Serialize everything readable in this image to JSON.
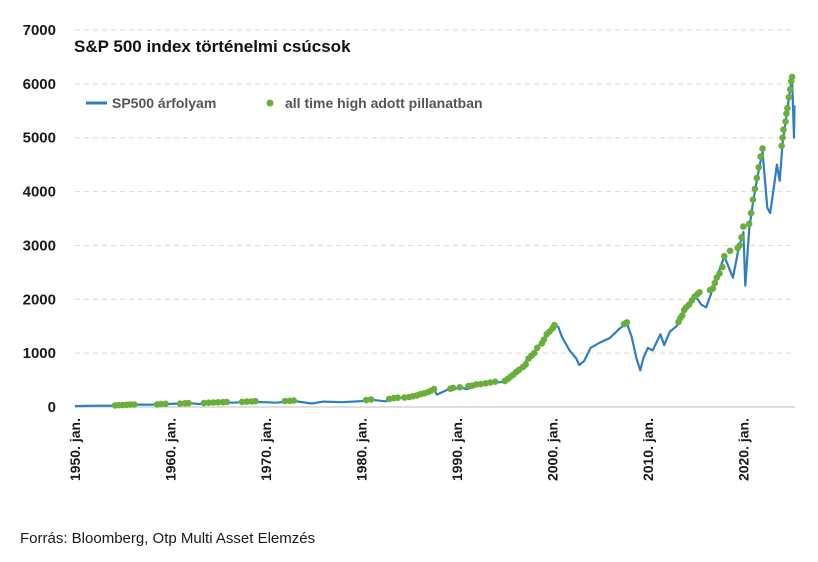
{
  "chart_data": {
    "type": "line",
    "title": "S&P 500 index történelmi csúcsok",
    "ylim": [
      0,
      7000
    ],
    "yticks": [
      "0",
      "1000",
      "2000",
      "3000",
      "4000",
      "5000",
      "6000",
      "7000"
    ],
    "xticks": [
      "1950. jan.",
      "1960. jan.",
      "1970. jan.",
      "1980. jan.",
      "1990. jan.",
      "2000. jan.",
      "2010. jan.",
      "2020. jan."
    ],
    "grid": "horizontal dashed",
    "legend_position": "top-left",
    "series": [
      {
        "name": "SP500 árfolyam",
        "style": "line",
        "color": "#2f7dc4",
        "points": [
          [
            1950.0,
            17
          ],
          [
            1952.0,
            24
          ],
          [
            1954.0,
            26
          ],
          [
            1955.0,
            36
          ],
          [
            1956.0,
            45
          ],
          [
            1957.0,
            44
          ],
          [
            1958.0,
            42
          ],
          [
            1960.0,
            58
          ],
          [
            1962.0,
            70
          ],
          [
            1963.0,
            55
          ],
          [
            1965.0,
            85
          ],
          [
            1966.5,
            80
          ],
          [
            1968.0,
            95
          ],
          [
            1970.0,
            90
          ],
          [
            1971.0,
            80
          ],
          [
            1973.0,
            110
          ],
          [
            1974.8,
            65
          ],
          [
            1976.0,
            100
          ],
          [
            1978.0,
            90
          ],
          [
            1980.0,
            110
          ],
          [
            1981.0,
            135
          ],
          [
            1982.5,
            105
          ],
          [
            1984.0,
            165
          ],
          [
            1986.0,
            240
          ],
          [
            1987.6,
            330
          ],
          [
            1987.9,
            230
          ],
          [
            1989.0,
            320
          ],
          [
            1990.5,
            360
          ],
          [
            1991.0,
            330
          ],
          [
            1993.0,
            440
          ],
          [
            1994.5,
            460
          ],
          [
            1995.0,
            470
          ],
          [
            1996.0,
            620
          ],
          [
            1997.0,
            800
          ],
          [
            1998.0,
            1000
          ],
          [
            1999.0,
            1250
          ],
          [
            2000.2,
            1500
          ],
          [
            2000.6,
            1490
          ],
          [
            2001.0,
            1300
          ],
          [
            2001.8,
            1050
          ],
          [
            2002.5,
            900
          ],
          [
            2002.8,
            780
          ],
          [
            2003.3,
            850
          ],
          [
            2004.0,
            1100
          ],
          [
            2005.0,
            1200
          ],
          [
            2006.0,
            1280
          ],
          [
            2007.0,
            1450
          ],
          [
            2007.8,
            1560
          ],
          [
            2008.3,
            1300
          ],
          [
            2008.8,
            900
          ],
          [
            2009.2,
            680
          ],
          [
            2009.5,
            900
          ],
          [
            2010.0,
            1100
          ],
          [
            2010.5,
            1050
          ],
          [
            2011.3,
            1350
          ],
          [
            2011.7,
            1150
          ],
          [
            2012.3,
            1400
          ],
          [
            2013.0,
            1500
          ],
          [
            2014.0,
            1850
          ],
          [
            2015.0,
            2050
          ],
          [
            2015.6,
            1900
          ],
          [
            2016.1,
            1850
          ],
          [
            2017.0,
            2300
          ],
          [
            2018.0,
            2800
          ],
          [
            2018.9,
            2400
          ],
          [
            2019.5,
            2950
          ],
          [
            2020.0,
            3250
          ],
          [
            2020.2,
            2250
          ],
          [
            2020.6,
            3300
          ],
          [
            2021.0,
            3800
          ],
          [
            2021.5,
            4300
          ],
          [
            2022.0,
            4750
          ],
          [
            2022.5,
            3700
          ],
          [
            2022.8,
            3600
          ],
          [
            2023.2,
            4100
          ],
          [
            2023.5,
            4500
          ],
          [
            2023.8,
            4200
          ],
          [
            2024.1,
            4900
          ],
          [
            2024.5,
            5400
          ],
          [
            2024.9,
            5900
          ],
          [
            2025.1,
            6100
          ],
          [
            2025.3,
            5000
          ],
          [
            2025.35,
            5600
          ]
        ]
      },
      {
        "name": "all time high adott pillanatban",
        "style": "markers",
        "color": "#6aaf3a",
        "points": [
          [
            1954.2,
            30
          ],
          [
            1954.6,
            33
          ],
          [
            1955.0,
            36
          ],
          [
            1955.4,
            40
          ],
          [
            1955.8,
            44
          ],
          [
            1956.2,
            46
          ],
          [
            1958.6,
            48
          ],
          [
            1959.0,
            55
          ],
          [
            1959.5,
            59
          ],
          [
            1961.0,
            62
          ],
          [
            1961.5,
            68
          ],
          [
            1961.9,
            71
          ],
          [
            1963.5,
            72
          ],
          [
            1964.0,
            80
          ],
          [
            1964.5,
            84
          ],
          [
            1965.0,
            87
          ],
          [
            1965.5,
            90
          ],
          [
            1965.9,
            93
          ],
          [
            1967.5,
            95
          ],
          [
            1968.0,
            100
          ],
          [
            1968.5,
            104
          ],
          [
            1968.9,
            107
          ],
          [
            1972.0,
            112
          ],
          [
            1972.5,
            116
          ],
          [
            1972.9,
            119
          ],
          [
            1980.5,
            128
          ],
          [
            1981.0,
            140
          ],
          [
            1982.9,
            150
          ],
          [
            1983.4,
            165
          ],
          [
            1983.8,
            172
          ],
          [
            1984.5,
            175
          ],
          [
            1985.0,
            185
          ],
          [
            1985.4,
            200
          ],
          [
            1985.8,
            215
          ],
          [
            1986.2,
            240
          ],
          [
            1986.6,
            255
          ],
          [
            1987.0,
            280
          ],
          [
            1987.3,
            305
          ],
          [
            1987.6,
            335
          ],
          [
            1989.3,
            340
          ],
          [
            1989.6,
            355
          ],
          [
            1990.3,
            365
          ],
          [
            1991.2,
            390
          ],
          [
            1991.6,
            395
          ],
          [
            1992.0,
            420
          ],
          [
            1992.5,
            425
          ],
          [
            1993.0,
            440
          ],
          [
            1993.5,
            455
          ],
          [
            1994.0,
            470
          ],
          [
            1995.0,
            480
          ],
          [
            1995.3,
            520
          ],
          [
            1995.6,
            560
          ],
          [
            1995.9,
            600
          ],
          [
            1996.2,
            650
          ],
          [
            1996.5,
            690
          ],
          [
            1996.9,
            740
          ],
          [
            1997.2,
            790
          ],
          [
            1997.5,
            900
          ],
          [
            1997.8,
            950
          ],
          [
            1998.1,
            1000
          ],
          [
            1998.4,
            1100
          ],
          [
            1998.9,
            1180
          ],
          [
            1999.1,
            1250
          ],
          [
            1999.4,
            1350
          ],
          [
            1999.7,
            1400
          ],
          [
            2000.0,
            1460
          ],
          [
            2000.2,
            1520
          ],
          [
            2007.5,
            1540
          ],
          [
            2007.7,
            1560
          ],
          [
            2007.8,
            1570
          ],
          [
            2013.2,
            1580
          ],
          [
            2013.4,
            1650
          ],
          [
            2013.6,
            1700
          ],
          [
            2013.8,
            1800
          ],
          [
            2014.0,
            1850
          ],
          [
            2014.3,
            1900
          ],
          [
            2014.6,
            1980
          ],
          [
            2014.9,
            2050
          ],
          [
            2015.2,
            2100
          ],
          [
            2015.4,
            2130
          ],
          [
            2016.5,
            2170
          ],
          [
            2016.8,
            2200
          ],
          [
            2017.0,
            2300
          ],
          [
            2017.2,
            2400
          ],
          [
            2017.5,
            2480
          ],
          [
            2017.8,
            2600
          ],
          [
            2018.0,
            2800
          ],
          [
            2018.6,
            2900
          ],
          [
            2019.4,
            2950
          ],
          [
            2019.6,
            3000
          ],
          [
            2019.8,
            3150
          ],
          [
            2020.0,
            3350
          ],
          [
            2020.6,
            3400
          ],
          [
            2020.8,
            3600
          ],
          [
            2021.0,
            3850
          ],
          [
            2021.2,
            4050
          ],
          [
            2021.4,
            4250
          ],
          [
            2021.6,
            4450
          ],
          [
            2021.8,
            4650
          ],
          [
            2022.0,
            4800
          ],
          [
            2024.0,
            4850
          ],
          [
            2024.1,
            5000
          ],
          [
            2024.2,
            5150
          ],
          [
            2024.4,
            5300
          ],
          [
            2024.5,
            5450
          ],
          [
            2024.6,
            5550
          ],
          [
            2024.75,
            5750
          ],
          [
            2024.9,
            5900
          ],
          [
            2025.0,
            6050
          ],
          [
            2025.1,
            6130
          ]
        ]
      }
    ]
  },
  "footer": {
    "source": "Forrás: Bloomberg, Otp Multi Asset Elemzés"
  }
}
